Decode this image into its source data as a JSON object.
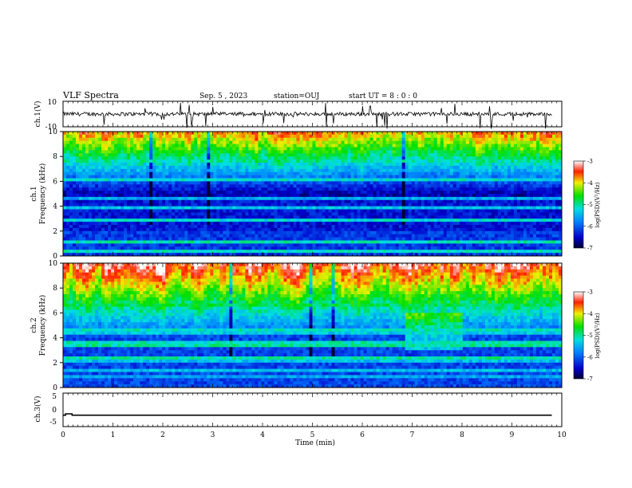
{
  "header": {
    "title": "VLF Spectra",
    "date": "Sep. 5 , 2023",
    "station": "station=OUJ",
    "start": "start UT = 8 : 0 : 0"
  },
  "chart_data": [
    {
      "type": "line",
      "ylabel": "ch.1(V)",
      "ylim": [
        -10,
        10
      ],
      "y_ticks": [
        "10",
        "-10"
      ],
      "xlim": [
        0,
        10
      ],
      "baseline": 0,
      "description_of_series": "noisy waveform around 0 V with short negative spikes"
    },
    {
      "type": "heatmap",
      "ylabel": "ch.1\nFrequency (kHz)",
      "ylabel_line1": "ch.1",
      "ylabel_line2": "Frequency (kHz)",
      "ylim": [
        0,
        10
      ],
      "y_ticks": [
        "0",
        "2",
        "4",
        "6",
        "8",
        "10"
      ],
      "xlim": [
        0,
        10
      ],
      "colorbar": {
        "label": "log(PSD)(V²/Hz)",
        "min": -7,
        "max": -3,
        "ticks": [
          "-3",
          "-4",
          "-5",
          "-6",
          "-7"
        ]
      }
    },
    {
      "type": "heatmap",
      "ylabel": "ch.2\nFrequency (kHz)",
      "ylabel_line1": "ch.2",
      "ylabel_line2": "Frequency (kHz)",
      "ylim": [
        0,
        10
      ],
      "y_ticks": [
        "0",
        "2",
        "4",
        "6",
        "8",
        "10"
      ],
      "xlim": [
        0,
        10
      ],
      "colorbar": {
        "label": "log(PSD)(V²/Hz)",
        "min": -7,
        "max": -3,
        "ticks": [
          "-3",
          "-4",
          "-5",
          "-6",
          "-7"
        ]
      }
    },
    {
      "type": "line",
      "ylabel": "ch.3(V)",
      "ylim": [
        -5,
        5
      ],
      "y_ticks": [
        "5",
        "0",
        "-5"
      ],
      "xlim": [
        0,
        10
      ],
      "x": [
        0,
        0.05,
        0.05,
        0.18,
        0.18,
        9.8
      ],
      "y": [
        -1.6,
        -1.6,
        -1.2,
        -1.2,
        -1.6,
        -1.6
      ]
    }
  ],
  "xaxis": {
    "label": "Time (min)",
    "ticks": [
      "0",
      "1",
      "2",
      "3",
      "4",
      "5",
      "6",
      "7",
      "8",
      "9",
      "10"
    ]
  }
}
